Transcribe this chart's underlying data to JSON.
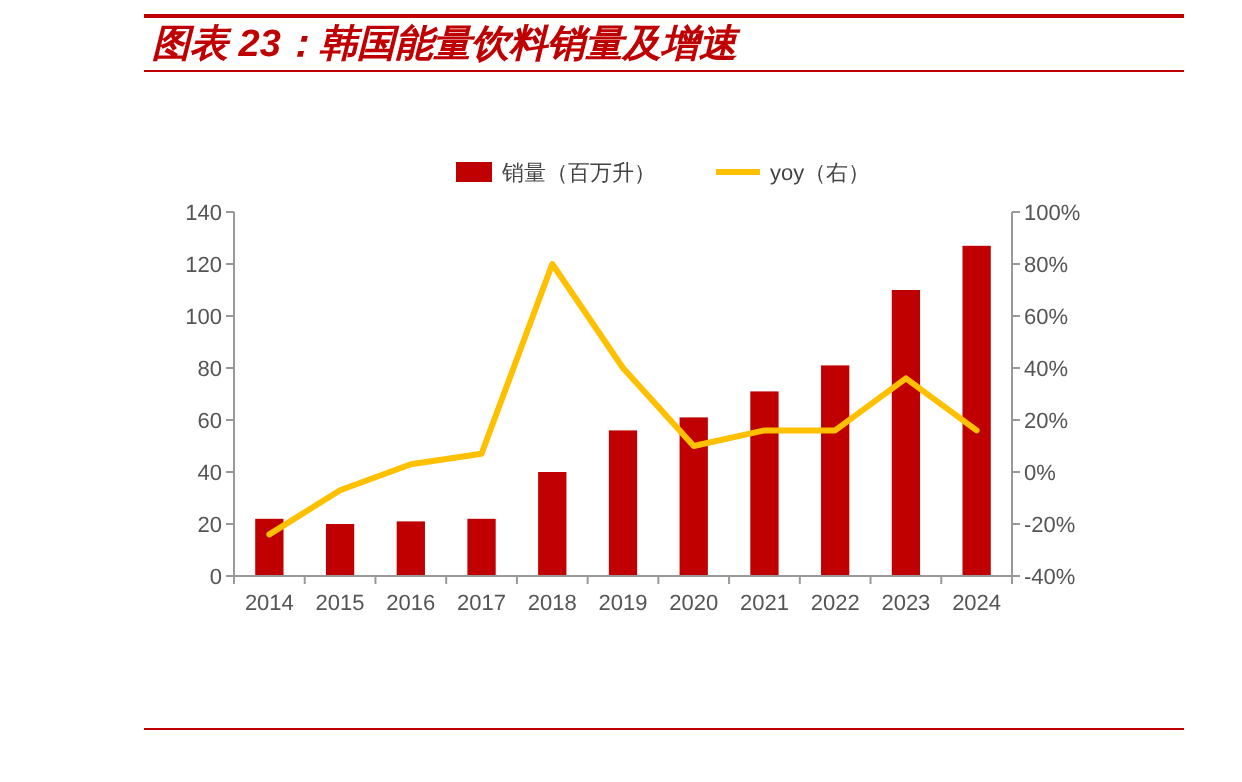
{
  "chart_data": {
    "type": "bar",
    "title": "图表 23：韩国能量饮料销量及增速",
    "categories": [
      "2014",
      "2015",
      "2016",
      "2017",
      "2018",
      "2019",
      "2020",
      "2021",
      "2022",
      "2023",
      "2024"
    ],
    "series": [
      {
        "name": "销量（百万升）",
        "color": "#c00000",
        "values": [
          22,
          20,
          21,
          22,
          40,
          56,
          61,
          71,
          81,
          110,
          127
        ]
      },
      {
        "name": "yoy（右）",
        "type": "line",
        "axis": "y2",
        "color": "#ffc000",
        "values": [
          -24,
          -7,
          3,
          7,
          80,
          40,
          10,
          16,
          16,
          36,
          16
        ]
      }
    ],
    "ylim": [
      0,
      140
    ],
    "yticks": [
      0,
      20,
      40,
      60,
      80,
      100,
      120,
      140
    ],
    "y2lim": [
      -40,
      100
    ],
    "y2ticks": [
      {
        "value": -40,
        "label": "-40%"
      },
      {
        "value": -20,
        "label": "-20%"
      },
      {
        "value": 0,
        "label": "0%"
      },
      {
        "value": 20,
        "label": "20%"
      },
      {
        "value": 40,
        "label": "40%"
      },
      {
        "value": 60,
        "label": "60%"
      },
      {
        "value": 80,
        "label": "80%"
      },
      {
        "value": 100,
        "label": "100%"
      }
    ],
    "legend": "top",
    "grid": false
  }
}
